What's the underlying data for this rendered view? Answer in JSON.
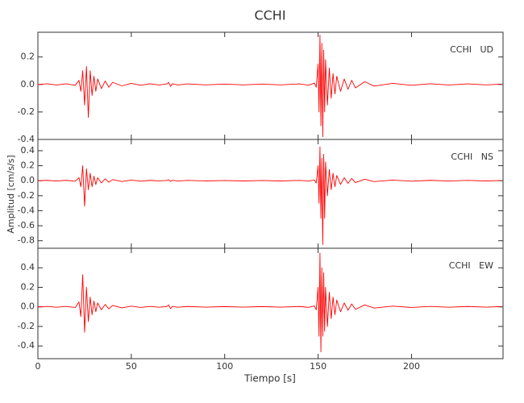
{
  "chart_data": [
    {
      "type": "line",
      "title": "CCHI",
      "x": [
        0,
        5,
        10,
        15,
        20,
        22,
        23,
        24,
        25,
        26,
        27,
        28,
        29,
        30,
        31,
        32,
        34,
        36,
        38,
        40,
        45,
        50,
        55,
        60,
        65,
        69,
        70,
        71,
        72,
        75,
        80,
        90,
        100,
        110,
        120,
        130,
        140,
        145,
        148,
        149,
        150,
        150.5,
        151,
        151.5,
        152,
        152.5,
        153,
        153.5,
        154,
        155,
        156,
        157,
        158,
        159,
        160,
        162,
        164,
        166,
        168,
        170,
        175,
        180,
        190,
        200,
        210,
        220,
        230,
        240,
        248
      ],
      "series": [
        {
          "name": "CCHI   UD",
          "color": "#ff0000",
          "values": [
            0,
            0.005,
            -0.004,
            0.005,
            -0.006,
            0.03,
            -0.05,
            0.1,
            -0.15,
            0.13,
            -0.24,
            0.1,
            -0.08,
            0.06,
            -0.05,
            0.04,
            -0.03,
            0.025,
            -0.02,
            0.015,
            -0.01,
            0.008,
            -0.006,
            0.005,
            -0.004,
            0.004,
            0.015,
            -0.014,
            0.005,
            -0.004,
            0.004,
            -0.003,
            0.003,
            -0.003,
            0.003,
            -0.003,
            0.004,
            -0.005,
            0.01,
            -0.02,
            0.15,
            -0.2,
            0.36,
            -0.3,
            0.3,
            -0.38,
            0.25,
            -0.2,
            0.18,
            -0.15,
            0.12,
            -0.1,
            0.08,
            -0.07,
            0.06,
            -0.05,
            0.04,
            -0.035,
            0.03,
            -0.025,
            0.02,
            -0.012,
            0.008,
            -0.006,
            0.005,
            -0.004,
            0.004,
            -0.003,
            0.003
          ]
        }
      ],
      "ylim": [
        -0.4,
        0.38
      ],
      "yticks": [
        -0.4,
        -0.2,
        {
          "value": 0,
          "label": "0.0"
        },
        0.2
      ]
    },
    {
      "type": "line",
      "ylabel": "Amplitud [cm/s/s]",
      "x": [
        0,
        5,
        10,
        15,
        20,
        22,
        23,
        24,
        25,
        26,
        27,
        28,
        29,
        30,
        31,
        32,
        34,
        36,
        38,
        40,
        45,
        50,
        55,
        60,
        65,
        69,
        70,
        71,
        72,
        75,
        80,
        90,
        100,
        110,
        120,
        130,
        140,
        145,
        148,
        149,
        150,
        150.5,
        151,
        151.5,
        152,
        152.5,
        153,
        153.5,
        154,
        155,
        156,
        157,
        158,
        159,
        160,
        162,
        164,
        166,
        168,
        170,
        175,
        180,
        190,
        200,
        210,
        220,
        230,
        240,
        248
      ],
      "series": [
        {
          "name": "CCHI   NS",
          "color": "#ff0000",
          "values": [
            0,
            0.005,
            -0.004,
            0.005,
            -0.006,
            0.04,
            -0.08,
            0.2,
            -0.34,
            0.16,
            -0.12,
            0.1,
            -0.08,
            0.06,
            -0.05,
            0.04,
            -0.03,
            0.025,
            -0.02,
            0.015,
            -0.01,
            0.008,
            -0.006,
            0.005,
            -0.004,
            0.004,
            0.012,
            -0.01,
            0.005,
            -0.004,
            0.004,
            -0.003,
            0.003,
            -0.003,
            0.003,
            -0.003,
            0.004,
            -0.005,
            0.01,
            -0.03,
            0.2,
            -0.3,
            0.45,
            -0.5,
            0.3,
            -0.85,
            0.35,
            -0.5,
            0.25,
            -0.2,
            0.15,
            -0.12,
            0.1,
            -0.08,
            0.07,
            -0.05,
            0.04,
            -0.035,
            0.03,
            -0.025,
            0.02,
            -0.012,
            0.008,
            -0.006,
            0.005,
            -0.004,
            0.004,
            -0.003,
            0.003
          ]
        }
      ],
      "ylim": [
        -0.9,
        0.55
      ],
      "yticks": [
        -0.8,
        -0.6,
        -0.4,
        -0.2,
        {
          "value": 0,
          "label": "0.0"
        },
        0.2,
        0.4
      ]
    },
    {
      "type": "line",
      "xlabel": "Tiempo [s]",
      "x": [
        0,
        5,
        10,
        15,
        20,
        22,
        23,
        24,
        25,
        26,
        27,
        28,
        29,
        30,
        31,
        32,
        34,
        36,
        38,
        40,
        45,
        50,
        55,
        60,
        65,
        69,
        70,
        71,
        72,
        75,
        80,
        90,
        100,
        110,
        120,
        130,
        140,
        145,
        148,
        149,
        150,
        150.5,
        151,
        151.5,
        152,
        152.5,
        153,
        153.5,
        154,
        155,
        156,
        157,
        158,
        159,
        160,
        162,
        164,
        166,
        168,
        170,
        175,
        180,
        190,
        200,
        210,
        220,
        230,
        240,
        248
      ],
      "series": [
        {
          "name": "CCHI   EW",
          "color": "#ff0000",
          "values": [
            0,
            0.005,
            -0.004,
            0.005,
            -0.006,
            0.05,
            -0.1,
            0.33,
            -0.26,
            0.2,
            -0.15,
            0.1,
            -0.08,
            0.06,
            -0.05,
            0.04,
            -0.03,
            0.025,
            -0.02,
            0.015,
            -0.01,
            0.008,
            -0.006,
            0.005,
            -0.004,
            0.004,
            0.02,
            -0.018,
            0.005,
            -0.004,
            0.004,
            -0.003,
            0.003,
            -0.003,
            0.003,
            -0.003,
            0.004,
            -0.005,
            0.01,
            -0.03,
            0.2,
            -0.3,
            0.55,
            -0.46,
            0.4,
            -0.3,
            0.35,
            -0.25,
            0.2,
            -0.2,
            0.15,
            -0.12,
            0.1,
            -0.08,
            0.07,
            -0.05,
            0.04,
            -0.035,
            0.03,
            -0.025,
            0.02,
            -0.012,
            0.008,
            -0.006,
            0.005,
            -0.004,
            0.004,
            -0.003,
            0.003
          ]
        }
      ],
      "ylim": [
        -0.53,
        0.6
      ],
      "yticks": [
        -0.4,
        -0.2,
        {
          "value": 0,
          "label": "0.0"
        },
        0.2,
        0.4
      ],
      "xlim": [
        0,
        249
      ],
      "xticks": [
        0,
        50,
        100,
        150,
        200
      ]
    }
  ]
}
